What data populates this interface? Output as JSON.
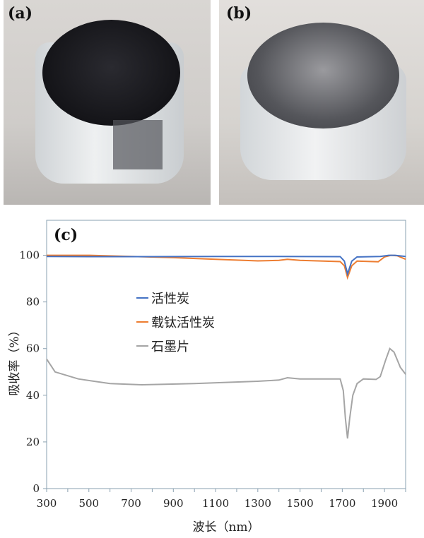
{
  "panels": {
    "a": "(a)",
    "b": "(b)",
    "c": "(c)"
  },
  "chart_data": {
    "type": "line",
    "xlabel": "波长（nm）",
    "ylabel": "吸收率（%）",
    "xlim": [
      300,
      2000
    ],
    "ylim": [
      0,
      115
    ],
    "xticks": [
      300,
      500,
      700,
      900,
      1100,
      1300,
      1500,
      1700,
      1900
    ],
    "yticks": [
      0,
      20,
      40,
      60,
      80,
      100
    ],
    "grid": false,
    "legend_position": "center-left",
    "series": [
      {
        "name": "活性炭",
        "color": "#4472c4",
        "x": [
          300,
          500,
          800,
          1100,
          1400,
          1690,
          1710,
          1725,
          1745,
          1770,
          1880,
          1920,
          1950,
          2000
        ],
        "y": [
          99.5,
          99.4,
          99.4,
          99.5,
          99.5,
          99.4,
          97.5,
          92,
          97.5,
          99.3,
          99.5,
          100,
          100,
          99.5
        ]
      },
      {
        "name": "载钛活性炭",
        "color": "#ed7d31",
        "x": [
          300,
          500,
          700,
          900,
          1100,
          1300,
          1400,
          1440,
          1500,
          1690,
          1710,
          1725,
          1745,
          1770,
          1870,
          1900,
          1930,
          1960,
          2000
        ],
        "y": [
          100,
          100,
          99.5,
          99,
          98.3,
          97.6,
          97.8,
          98.3,
          97.8,
          97.3,
          95.5,
          90.5,
          95.5,
          97.5,
          97.2,
          99.3,
          100,
          99.8,
          98.3
        ]
      },
      {
        "name": "石墨片",
        "color": "#a5a5a5",
        "x": [
          300,
          340,
          450,
          600,
          750,
          1000,
          1300,
          1400,
          1440,
          1500,
          1690,
          1705,
          1715,
          1725,
          1735,
          1750,
          1770,
          1800,
          1860,
          1880,
          1905,
          1925,
          1945,
          1975,
          2000
        ],
        "y": [
          55.5,
          50,
          47,
          45,
          44.5,
          45,
          46,
          46.5,
          47.5,
          47,
          47,
          42,
          30,
          21.5,
          30,
          40,
          45,
          47,
          46.8,
          48,
          55,
          60,
          58.5,
          52,
          49
        ]
      }
    ]
  }
}
